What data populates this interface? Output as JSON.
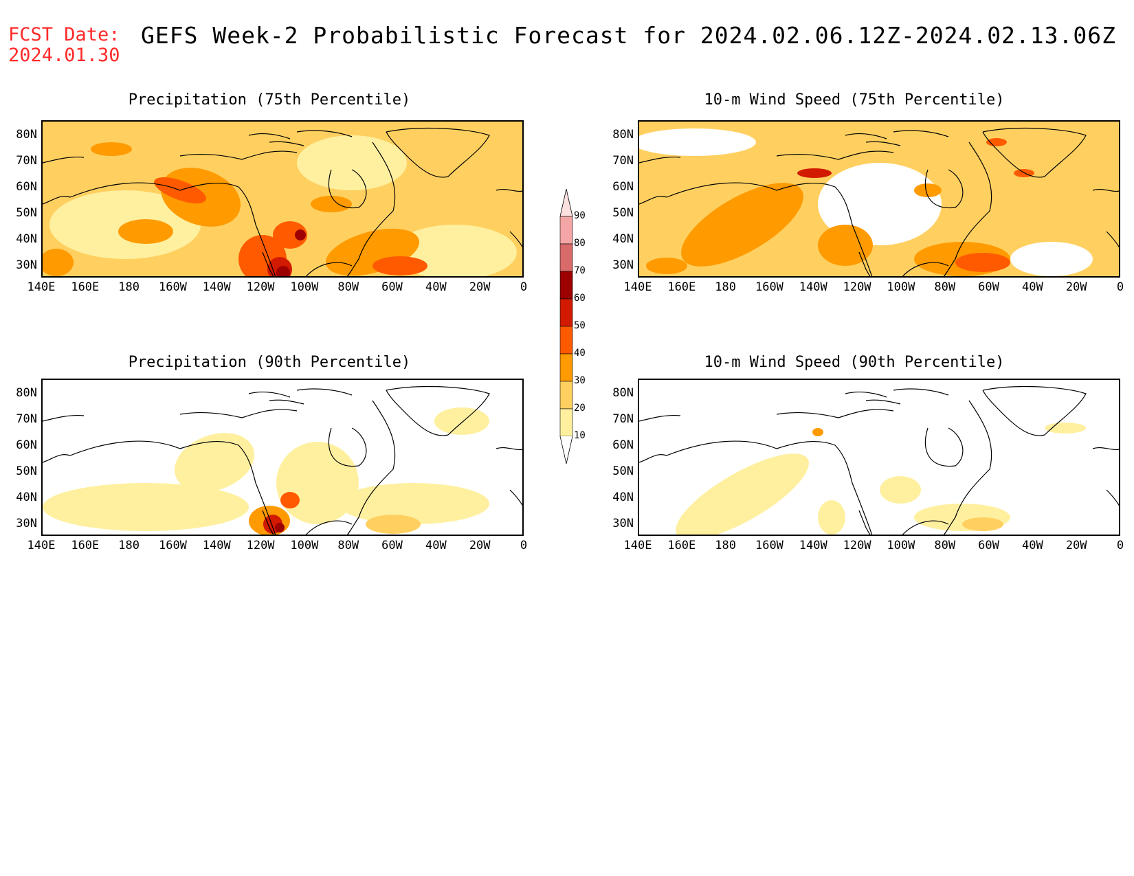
{
  "header": {
    "fcst_label": "FCST Date:",
    "fcst_date": "2024.01.30",
    "title": "GEFS Week-2 Probabilistic Forecast for 2024.02.06.12Z-2024.02.13.06Z"
  },
  "axes": {
    "lat_ticks": [
      "80N",
      "70N",
      "60N",
      "50N",
      "40N",
      "30N"
    ],
    "lon_ticks": [
      "140E",
      "160E",
      "180",
      "160W",
      "140W",
      "120W",
      "100W",
      "80W",
      "60W",
      "40W",
      "20W",
      "0"
    ]
  },
  "panels": [
    {
      "title": "Precipitation (75th Percentile)",
      "level": "high"
    },
    {
      "title": "10-m Wind Speed (75th Percentile)",
      "level": "high"
    },
    {
      "title": "Precipitation (90th Percentile)",
      "level": "low"
    },
    {
      "title": "10-m Wind Speed (90th Percentile)",
      "level": "low"
    }
  ],
  "colorbar": {
    "levels": [
      "90",
      "80",
      "70",
      "60",
      "50",
      "40",
      "30",
      "20",
      "10"
    ],
    "colors": [
      "#f4a6a6",
      "#d96a6a",
      "#9c0000",
      "#d11a00",
      "#ff5a00",
      "#ff9a00",
      "#ffd060",
      "#fff0a0"
    ]
  }
}
